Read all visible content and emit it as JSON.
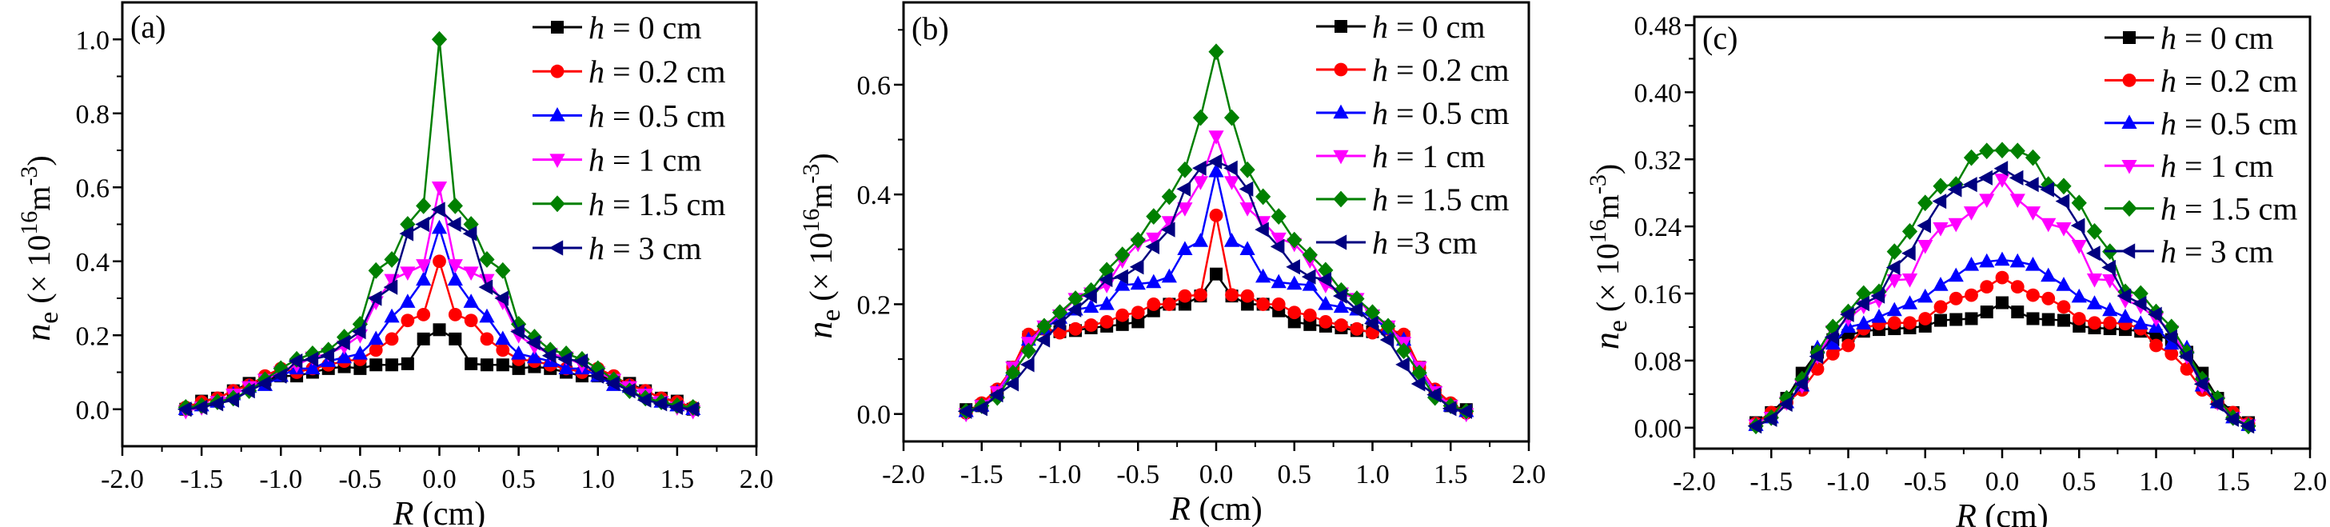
{
  "figure": {
    "series_styles": [
      {
        "name": "h = 0 cm",
        "color": "#000000",
        "marker": "square"
      },
      {
        "name": "h = 0.2 cm",
        "color": "#FF0000",
        "marker": "circle"
      },
      {
        "name": "h = 0.5 cm",
        "color": "#0000FF",
        "marker": "triangle-up"
      },
      {
        "name": "h = 1 cm",
        "color": "#FF00FF",
        "marker": "triangle-down"
      },
      {
        "name": "h = 1.5 cm",
        "color": "#008000",
        "marker": "diamond"
      },
      {
        "name": "h = 3 cm",
        "color": "#000080",
        "marker": "triangle-left"
      }
    ]
  },
  "chart_data": [
    {
      "type": "line",
      "panel_label": "(a)",
      "title": "",
      "xlabel": "R (cm)",
      "xlabel_italic": "R",
      "xlabel_rest": " (cm)",
      "ylabel": "n_e (× 10^16 m^-3)",
      "xlim": [
        -2.0,
        2.0
      ],
      "ylim": [
        -0.1,
        1.1
      ],
      "xticks": [
        -2.0,
        -1.5,
        -1.0,
        -0.5,
        0.0,
        0.5,
        1.0,
        1.5,
        2.0
      ],
      "xtick_labels": [
        "-2.0",
        "-1.5",
        "-1.0",
        "-0.5",
        "0.0",
        "0.5",
        "1.0",
        "1.5",
        "2.0"
      ],
      "yticks": [
        0.0,
        0.2,
        0.4,
        0.6,
        0.8,
        1.0
      ],
      "ytick_labels": [
        "0.0",
        "0.2",
        "0.4",
        "0.6",
        "0.8",
        "1.0"
      ],
      "grid": false,
      "legend_position": "top-right",
      "legend_labels": [
        "= 0 cm",
        "= 0.2 cm",
        "= 0.5 cm",
        "= 1 cm",
        "= 1.5 cm",
        "= 3 cm"
      ],
      "x": [
        -1.6,
        -1.5,
        -1.4,
        -1.3,
        -1.2,
        -1.1,
        -1.0,
        -0.9,
        -0.8,
        -0.7,
        -0.6,
        -0.5,
        -0.4,
        -0.3,
        -0.2,
        -0.1,
        0.0,
        0.1,
        0.2,
        0.3,
        0.4,
        0.5,
        0.6,
        0.7,
        0.8,
        0.9,
        1.0,
        1.1,
        1.2,
        1.3,
        1.4,
        1.5,
        1.6
      ],
      "series": [
        {
          "name": "h = 0 cm",
          "values": [
            0.0,
            0.022,
            0.03,
            0.05,
            0.07,
            0.08,
            0.09,
            0.09,
            0.1,
            0.11,
            0.115,
            0.11,
            0.12,
            0.12,
            0.123,
            0.19,
            0.215,
            0.19,
            0.123,
            0.12,
            0.12,
            0.11,
            0.115,
            0.11,
            0.1,
            0.09,
            0.09,
            0.08,
            0.07,
            0.05,
            0.03,
            0.022,
            0.0
          ]
        },
        {
          "name": "h = 0.2 cm",
          "values": [
            0.005,
            0.02,
            0.03,
            0.05,
            0.065,
            0.09,
            0.11,
            0.1,
            0.11,
            0.12,
            0.13,
            0.135,
            0.16,
            0.19,
            0.24,
            0.256,
            0.4,
            0.256,
            0.24,
            0.19,
            0.16,
            0.135,
            0.13,
            0.12,
            0.11,
            0.1,
            0.11,
            0.09,
            0.065,
            0.05,
            0.03,
            0.02,
            0.005
          ]
        },
        {
          "name": "h = 0.5 cm",
          "values": [
            0.0,
            0.01,
            0.02,
            0.04,
            0.06,
            0.065,
            0.09,
            0.11,
            0.11,
            0.13,
            0.14,
            0.15,
            0.19,
            0.25,
            0.29,
            0.35,
            0.49,
            0.35,
            0.29,
            0.25,
            0.19,
            0.15,
            0.14,
            0.13,
            0.11,
            0.11,
            0.09,
            0.065,
            0.06,
            0.04,
            0.02,
            0.01,
            0.0
          ]
        },
        {
          "name": "h = 1 cm",
          "values": [
            -0.005,
            0.005,
            0.02,
            0.04,
            0.06,
            0.08,
            0.1,
            0.12,
            0.14,
            0.15,
            0.17,
            0.2,
            0.29,
            0.35,
            0.37,
            0.39,
            0.6,
            0.39,
            0.37,
            0.35,
            0.29,
            0.2,
            0.17,
            0.15,
            0.14,
            0.12,
            0.1,
            0.08,
            0.06,
            0.04,
            0.02,
            0.005,
            -0.005
          ]
        },
        {
          "name": "h = 1.5 cm",
          "values": [
            0.005,
            0.01,
            0.02,
            0.03,
            0.05,
            0.08,
            0.11,
            0.135,
            0.15,
            0.16,
            0.195,
            0.23,
            0.375,
            0.405,
            0.5,
            0.55,
            1.0,
            0.55,
            0.5,
            0.405,
            0.375,
            0.23,
            0.195,
            0.16,
            0.15,
            0.135,
            0.11,
            0.08,
            0.05,
            0.03,
            0.02,
            0.01,
            0.005
          ]
        },
        {
          "name": "h = 3 cm",
          "values": [
            0.0,
            0.005,
            0.015,
            0.025,
            0.05,
            0.07,
            0.09,
            0.13,
            0.135,
            0.145,
            0.18,
            0.21,
            0.3,
            0.33,
            0.475,
            0.5,
            0.54,
            0.5,
            0.475,
            0.33,
            0.3,
            0.21,
            0.18,
            0.145,
            0.135,
            0.13,
            0.09,
            0.07,
            0.05,
            0.025,
            0.015,
            0.005,
            0.0
          ]
        }
      ]
    },
    {
      "type": "line",
      "panel_label": "(b)",
      "title": "",
      "xlabel": "R (cm)",
      "xlabel_italic": "R",
      "xlabel_rest": " (cm)",
      "ylabel": "n_e (× 10^16 m^-3)",
      "xlim": [
        -2.0,
        2.0
      ],
      "ylim": [
        -0.05,
        0.75
      ],
      "xticks": [
        -2.0,
        -1.5,
        -1.0,
        -0.5,
        0.0,
        0.5,
        1.0,
        1.5,
        2.0
      ],
      "xtick_labels": [
        "-2.0",
        "-1.5",
        "-1.0",
        "-0.5",
        "0.0",
        "0.5",
        "1.0",
        "1.5",
        "2.0"
      ],
      "yticks": [
        0.0,
        0.2,
        0.4,
        0.6
      ],
      "ytick_labels": [
        "0.0",
        "0.2",
        "0.4",
        "0.6"
      ],
      "grid": false,
      "legend_position": "top-right",
      "legend_labels": [
        "= 0 cm",
        "= 0.2 cm",
        "= 0.5 cm",
        "= 1 cm",
        "= 1.5 cm",
        "=3 cm"
      ],
      "x": [
        -1.6,
        -1.5,
        -1.4,
        -1.3,
        -1.2,
        -1.1,
        -1.0,
        -0.9,
        -0.8,
        -0.7,
        -0.6,
        -0.5,
        -0.4,
        -0.3,
        -0.2,
        -0.1,
        0.0,
        0.1,
        0.2,
        0.3,
        0.4,
        0.5,
        0.6,
        0.7,
        0.8,
        0.9,
        1.0,
        1.1,
        1.2,
        1.3,
        1.4,
        1.5,
        1.6
      ],
      "series": [
        {
          "name": "h = 0 cm",
          "values": [
            0.008,
            0.015,
            0.04,
            0.085,
            0.14,
            0.155,
            0.15,
            0.152,
            0.157,
            0.16,
            0.163,
            0.168,
            0.188,
            0.2,
            0.2,
            0.215,
            0.255,
            0.215,
            0.2,
            0.2,
            0.188,
            0.168,
            0.163,
            0.16,
            0.157,
            0.152,
            0.15,
            0.155,
            0.14,
            0.085,
            0.04,
            0.015,
            0.008
          ]
        },
        {
          "name": "h = 0.2 cm",
          "values": [
            0.002,
            0.02,
            0.045,
            0.085,
            0.145,
            0.155,
            0.148,
            0.155,
            0.162,
            0.168,
            0.18,
            0.185,
            0.2,
            0.2,
            0.215,
            0.217,
            0.362,
            0.217,
            0.215,
            0.2,
            0.2,
            0.185,
            0.18,
            0.168,
            0.162,
            0.155,
            0.148,
            0.155,
            0.145,
            0.085,
            0.045,
            0.02,
            0.002
          ]
        },
        {
          "name": "h = 0.5 cm",
          "values": [
            0.005,
            0.015,
            0.04,
            0.08,
            0.135,
            0.155,
            0.175,
            0.19,
            0.195,
            0.2,
            0.235,
            0.237,
            0.24,
            0.25,
            0.3,
            0.315,
            0.442,
            0.315,
            0.3,
            0.25,
            0.24,
            0.237,
            0.235,
            0.2,
            0.195,
            0.19,
            0.175,
            0.155,
            0.135,
            0.08,
            0.04,
            0.015,
            0.005
          ]
        },
        {
          "name": "h = 1 cm",
          "values": [
            0.0,
            0.015,
            0.04,
            0.085,
            0.13,
            0.16,
            0.18,
            0.21,
            0.22,
            0.235,
            0.28,
            0.31,
            0.32,
            0.35,
            0.375,
            0.423,
            0.506,
            0.423,
            0.375,
            0.35,
            0.32,
            0.31,
            0.28,
            0.235,
            0.22,
            0.21,
            0.18,
            0.16,
            0.13,
            0.085,
            0.04,
            0.015,
            0.0
          ]
        },
        {
          "name": "h = 1.5 cm",
          "values": [
            0.005,
            0.015,
            0.03,
            0.075,
            0.115,
            0.16,
            0.185,
            0.21,
            0.225,
            0.262,
            0.29,
            0.317,
            0.36,
            0.396,
            0.445,
            0.54,
            0.66,
            0.54,
            0.445,
            0.396,
            0.36,
            0.317,
            0.29,
            0.262,
            0.225,
            0.21,
            0.185,
            0.16,
            0.115,
            0.075,
            0.03,
            0.015,
            0.005
          ]
        },
        {
          "name": "h = 3 cm",
          "values": [
            0.005,
            0.01,
            0.035,
            0.055,
            0.09,
            0.135,
            0.165,
            0.19,
            0.215,
            0.245,
            0.25,
            0.268,
            0.305,
            0.336,
            0.41,
            0.448,
            0.46,
            0.448,
            0.41,
            0.336,
            0.305,
            0.268,
            0.25,
            0.245,
            0.215,
            0.19,
            0.165,
            0.135,
            0.09,
            0.055,
            0.035,
            0.01,
            0.005
          ]
        }
      ]
    },
    {
      "type": "line",
      "panel_label": "(c)",
      "title": "",
      "xlabel": "R (cm)",
      "xlabel_italic": "R",
      "xlabel_rest": " (cm)",
      "ylabel": "n_e (× 10^16 m^-3)",
      "xlim": [
        -2.0,
        2.0
      ],
      "ylim": [
        -0.025,
        0.49
      ],
      "xticks": [
        -2.0,
        -1.5,
        -1.0,
        -0.5,
        0.0,
        0.5,
        1.0,
        1.5,
        2.0
      ],
      "xtick_labels": [
        "-2.0",
        "-1.5",
        "-1.0",
        "-0.5",
        "0.0",
        "0.5",
        "1.0",
        "1.5",
        "2.0"
      ],
      "yticks": [
        0.0,
        0.08,
        0.16,
        0.24,
        0.32,
        0.4,
        0.48
      ],
      "ytick_labels": [
        "0.00",
        "0.08",
        "0.16",
        "0.24",
        "0.32",
        "0.40",
        "0.48"
      ],
      "grid": false,
      "legend_position": "top-right",
      "legend_labels": [
        "= 0 cm",
        "= 0.2 cm",
        "= 0.5 cm",
        "= 1 cm",
        "= 1.5 cm",
        "= 3 cm"
      ],
      "x": [
        -1.6,
        -1.5,
        -1.4,
        -1.3,
        -1.2,
        -1.1,
        -1.0,
        -0.9,
        -0.8,
        -0.7,
        -0.6,
        -0.5,
        -0.4,
        -0.3,
        -0.2,
        -0.1,
        0.0,
        0.1,
        0.2,
        0.3,
        0.4,
        0.5,
        0.6,
        0.7,
        0.8,
        0.9,
        1.0,
        1.1,
        1.2,
        1.3,
        1.4,
        1.5,
        1.6
      ],
      "series": [
        {
          "name": "h = 0 cm",
          "values": [
            0.006,
            0.018,
            0.035,
            0.065,
            0.09,
            0.105,
            0.11,
            0.115,
            0.117,
            0.118,
            0.119,
            0.121,
            0.128,
            0.129,
            0.13,
            0.138,
            0.149,
            0.138,
            0.13,
            0.129,
            0.128,
            0.121,
            0.119,
            0.118,
            0.117,
            0.115,
            0.11,
            0.105,
            0.09,
            0.065,
            0.035,
            0.018,
            0.006
          ]
        },
        {
          "name": "h = 0.2 cm",
          "values": [
            0.005,
            0.018,
            0.03,
            0.045,
            0.07,
            0.088,
            0.098,
            0.118,
            0.124,
            0.125,
            0.125,
            0.13,
            0.144,
            0.154,
            0.158,
            0.168,
            0.179,
            0.168,
            0.158,
            0.154,
            0.144,
            0.13,
            0.125,
            0.125,
            0.124,
            0.118,
            0.098,
            0.088,
            0.07,
            0.045,
            0.03,
            0.018,
            0.005
          ]
        },
        {
          "name": "h = 0.5 cm",
          "values": [
            0.003,
            0.012,
            0.03,
            0.05,
            0.095,
            0.1,
            0.12,
            0.124,
            0.132,
            0.14,
            0.148,
            0.156,
            0.17,
            0.181,
            0.194,
            0.198,
            0.2,
            0.198,
            0.194,
            0.181,
            0.17,
            0.156,
            0.148,
            0.14,
            0.132,
            0.124,
            0.12,
            0.1,
            0.095,
            0.05,
            0.03,
            0.012,
            0.003
          ]
        },
        {
          "name": "h = 1 cm",
          "values": [
            0.003,
            0.012,
            0.03,
            0.05,
            0.085,
            0.115,
            0.13,
            0.145,
            0.152,
            0.176,
            0.177,
            0.217,
            0.238,
            0.243,
            0.257,
            0.272,
            0.296,
            0.272,
            0.257,
            0.243,
            0.238,
            0.217,
            0.177,
            0.176,
            0.152,
            0.145,
            0.13,
            0.115,
            0.085,
            0.05,
            0.03,
            0.012,
            0.003
          ]
        },
        {
          "name": "h = 1.5 cm",
          "values": [
            0.002,
            0.012,
            0.035,
            0.058,
            0.09,
            0.12,
            0.138,
            0.16,
            0.162,
            0.21,
            0.234,
            0.268,
            0.288,
            0.29,
            0.322,
            0.33,
            0.331,
            0.33,
            0.322,
            0.29,
            0.288,
            0.268,
            0.234,
            0.21,
            0.162,
            0.16,
            0.138,
            0.12,
            0.09,
            0.058,
            0.035,
            0.012,
            0.002
          ]
        },
        {
          "name": "h = 3 cm",
          "values": [
            0.002,
            0.01,
            0.028,
            0.052,
            0.085,
            0.108,
            0.135,
            0.148,
            0.157,
            0.191,
            0.208,
            0.241,
            0.27,
            0.284,
            0.29,
            0.298,
            0.309,
            0.298,
            0.29,
            0.284,
            0.27,
            0.241,
            0.208,
            0.191,
            0.157,
            0.148,
            0.135,
            0.108,
            0.085,
            0.052,
            0.028,
            0.01,
            0.002
          ]
        }
      ]
    }
  ]
}
